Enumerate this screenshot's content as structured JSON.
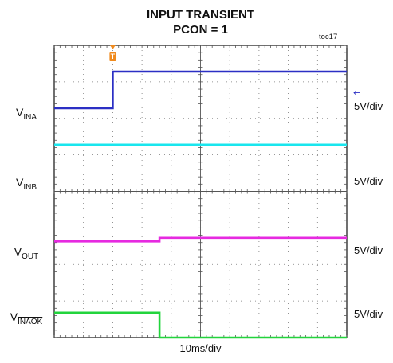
{
  "chart_data": {
    "type": "line",
    "title": "INPUT TRANSIENT",
    "subtitle": "PCON = 1",
    "figure_id": "toc17",
    "x_scale_label": "10ms/div",
    "x_divisions": 10,
    "y_divisions": 8,
    "trigger_marker": "T",
    "trigger_x_div": 2.0,
    "channel_marker_glyph": "←",
    "series": [
      {
        "name": "INA",
        "label_main": "V",
        "label_sub": "INA",
        "overline": false,
        "scale": "5V/div",
        "color": "#2b2fc4",
        "x_div": [
          0,
          2.0,
          2.0,
          10
        ],
        "y_div": [
          6.28,
          6.28,
          7.28,
          7.28
        ]
      },
      {
        "name": "INB",
        "label_main": "V",
        "label_sub": "INB",
        "overline": false,
        "scale": "5V/div",
        "color": "#19e6ee",
        "x_div": [
          0,
          10
        ],
        "y_div": [
          5.28,
          5.28
        ]
      },
      {
        "name": "OUT",
        "label_main": "V",
        "label_sub": "OUT",
        "overline": false,
        "scale": "5V/div",
        "color": "#e62ae0",
        "x_div": [
          0,
          3.6,
          3.6,
          10
        ],
        "y_div": [
          2.63,
          2.63,
          2.73,
          2.73
        ]
      },
      {
        "name": "INAOK",
        "label_main": "V",
        "label_sub": "INAOK",
        "overline": true,
        "scale": "5V/div",
        "color": "#22d43c",
        "x_div": [
          0,
          3.6,
          3.6,
          10
        ],
        "y_div": [
          0.68,
          0.68,
          0.0,
          0.0
        ]
      }
    ]
  }
}
